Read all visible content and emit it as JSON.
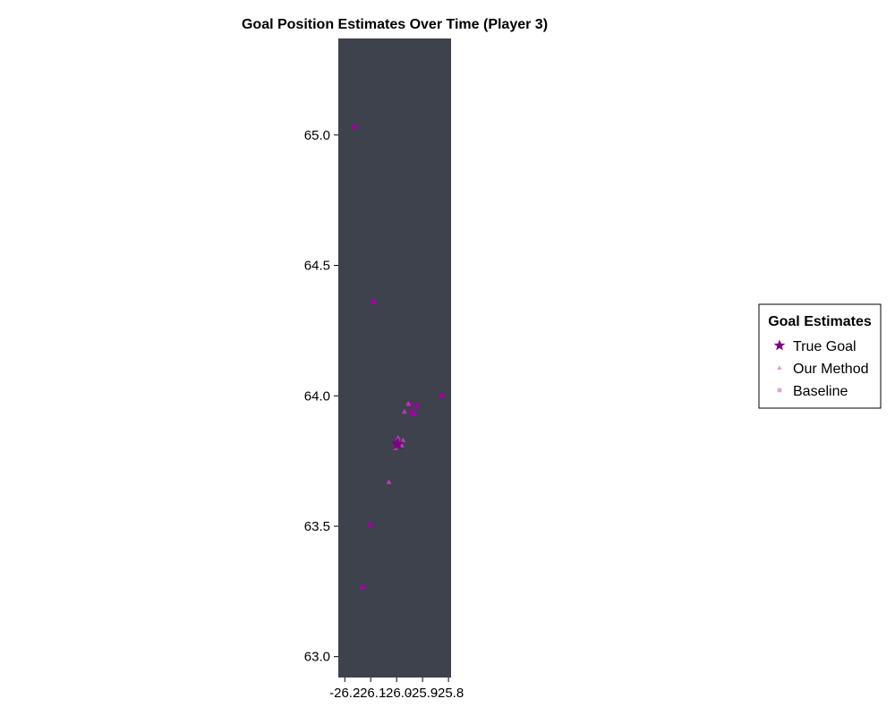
{
  "chart_data": {
    "type": "scatter",
    "title": "Goal Position Estimates Over Time (Player 3)",
    "xlabel": "",
    "ylabel": "",
    "xlim": [
      -26.225,
      -25.79
    ],
    "ylim": [
      62.92,
      65.37
    ],
    "x_ticks": [
      -26.2,
      -26.1,
      -26.0,
      -25.9,
      -25.8
    ],
    "x_tick_labels": [
      "-26.2",
      "-26.1",
      "-26.0",
      "-25.9",
      "-25.8"
    ],
    "y_ticks": [
      63.0,
      63.5,
      64.0,
      64.5,
      65.0
    ],
    "y_tick_labels": [
      "63.0",
      "63.5",
      "64.0",
      "64.5",
      "65.0"
    ],
    "grid": false,
    "plot_background": "#3d424c",
    "legend": {
      "title": "Goal Estimates",
      "position": "right",
      "entries": [
        {
          "label": "True Goal",
          "marker": "star",
          "color": "#800080"
        },
        {
          "label": "Our Method",
          "marker": "triangle",
          "color": "#dda0dd"
        },
        {
          "label": "Baseline",
          "marker": "square",
          "color": "#d8a8d8"
        }
      ]
    },
    "series": [
      {
        "name": "True Goal",
        "marker": "star",
        "color": "#800080",
        "points": [
          [
            -25.997,
            63.815
          ]
        ]
      },
      {
        "name": "Our Method",
        "marker": "triangle",
        "color": "#b040b0",
        "points": [
          [
            -26.03,
            63.67
          ],
          [
            -25.995,
            63.84
          ],
          [
            -25.99,
            63.82
          ],
          [
            -25.98,
            63.81
          ],
          [
            -26.005,
            63.8
          ],
          [
            -25.975,
            63.83
          ],
          [
            -25.97,
            63.94
          ],
          [
            -25.955,
            63.97
          ]
        ]
      },
      {
        "name": "Baseline",
        "marker": "square",
        "color": "#a000a0",
        "points": [
          [
            -26.16,
            65.03
          ],
          [
            -26.088,
            64.36
          ],
          [
            -25.825,
            64.0
          ],
          [
            -25.92,
            63.96
          ],
          [
            -25.947,
            63.965
          ],
          [
            -25.94,
            63.935
          ],
          [
            -25.93,
            63.93
          ],
          [
            -26.1,
            63.505
          ],
          [
            -26.13,
            63.265
          ]
        ]
      }
    ]
  }
}
